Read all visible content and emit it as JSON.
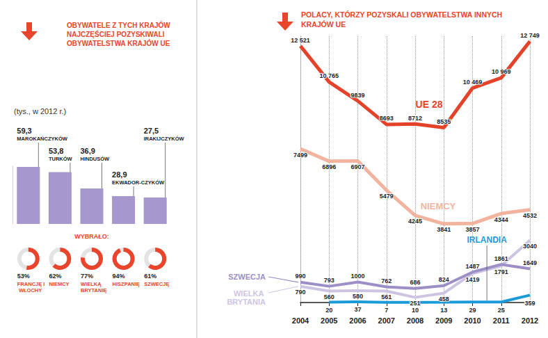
{
  "chart_data": [
    {
      "type": "bar",
      "title": "OBYWATELE Z TYCH KRAJÓW NAJCZĘŚCIEJ POZYSKIWALI OBYWATELSTWA KRAJÓW UE",
      "subtitle": "(tys., w 2012 r.)",
      "categories": [
        "MAROKAŃCZYKÓW",
        "TURKÓW",
        "HINDUSÓW",
        "EKWADOR-CZYKÓW",
        "IRAKIJCZYKÓW"
      ],
      "values": [
        59.3,
        53.8,
        36.9,
        28.9,
        27.5
      ],
      "value_labels": [
        "59,3",
        "53,8",
        "36,9",
        "28,9",
        "27,5"
      ],
      "color": "#a797cf",
      "ylim": [
        0,
        60
      ],
      "tick_labels": false,
      "grid": false,
      "data_labels": true
    },
    {
      "type": "donut",
      "title": "WYBRAŁO:",
      "categories": [
        "FRANCJĘ I WŁOCHY",
        "NIEMCY",
        "WIELKĄ BRYTANIĘ",
        "HISZPANIĘ",
        "SZWECJĘ"
      ],
      "values": [
        53,
        62,
        77,
        94,
        61
      ],
      "value_labels": [
        "53%",
        "62%",
        "77%",
        "94%",
        "61%"
      ],
      "color": "#e8452c",
      "ylim": [
        0,
        100
      ],
      "data_labels": true
    },
    {
      "type": "line",
      "title": "POLACY, KTÓRZY POZYSKALI OBYWATELSTWA INNYCH KRAJÓW UE",
      "categories": [
        "2004",
        "2005",
        "2006",
        "2007",
        "2008",
        "2009",
        "2010",
        "2011",
        "2012"
      ],
      "series": [
        {
          "name": "UE 28",
          "color": "#e4432a",
          "values": [
            12521,
            10765,
            9839,
            8693,
            8712,
            8535,
            10469,
            10969,
            12749
          ],
          "value_labels": [
            "12 521",
            "10 765",
            "9839",
            "8693",
            "8712",
            "8535",
            "10 469",
            "10 969",
            "12 749"
          ]
        },
        {
          "name": "NIEMCY",
          "color": "#f2b49e",
          "values": [
            7499,
            6896,
            6907,
            5479,
            4245,
            3841,
            3857,
            4344,
            4532
          ]
        },
        {
          "name": "SZWECJA",
          "color": "#9c8ec6",
          "values": [
            990,
            793,
            1000,
            762,
            686,
            824,
            1487,
            1861,
            1649
          ]
        },
        {
          "name": "WIELKA BRYTANIA",
          "color": "#cdc4e2",
          "values": [
            790,
            560,
            580,
            561,
            251,
            458,
            1419,
            1791,
            3040
          ]
        },
        {
          "name": "IRLANDIA",
          "color": "#1b9ad8",
          "values": [
            null,
            20,
            37,
            7,
            10,
            13,
            29,
            25,
            359
          ]
        }
      ],
      "ylim": [
        0,
        13000
      ],
      "tick_labels": "x",
      "grid": true,
      "data_labels": true
    }
  ]
}
